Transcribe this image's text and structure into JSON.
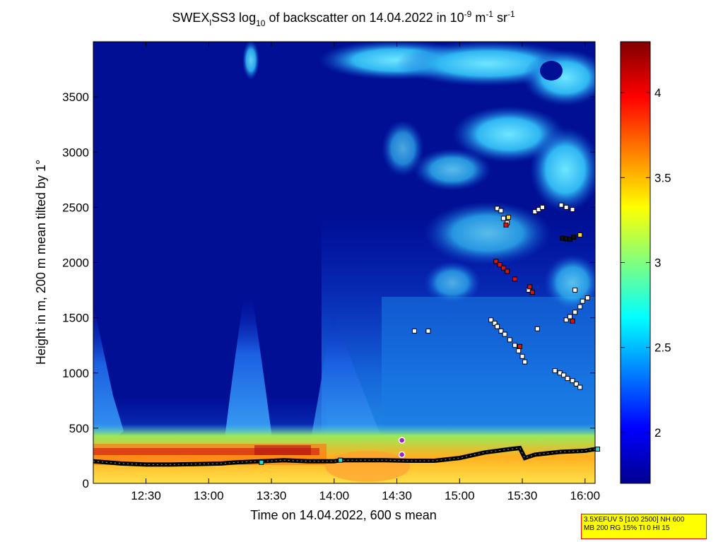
{
  "chart_data": {
    "type": "heatmap",
    "title_parts": {
      "a": "SWEX",
      "sub1": "l",
      "b": "SS3 log",
      "sub2": "10",
      "c": " of backscatter on 14.04.2022 in 10",
      "sup1": "-9",
      "d": " m",
      "sup2": "-1",
      "e": " sr",
      "sup3": "-1"
    },
    "xlabel": "Time on 14.04.2022, 600 s mean",
    "ylabel": "Height in m, 200 m mean tilted by 1°",
    "x_ticks": [
      "12:30",
      "13:00",
      "13:30",
      "14:00",
      "14:30",
      "15:00",
      "15:30",
      "16:00"
    ],
    "x_tick_hours": [
      12.5,
      13.0,
      13.5,
      14.0,
      14.5,
      15.0,
      15.5,
      16.0
    ],
    "xlim_hours": [
      12.08,
      16.08
    ],
    "y_ticks": [
      "0",
      "500",
      "1000",
      "1500",
      "2000",
      "2500",
      "3000",
      "3500"
    ],
    "y_tick_values": [
      0,
      500,
      1000,
      1500,
      2000,
      2500,
      3000,
      3500
    ],
    "ylim": [
      0,
      4000
    ],
    "colorbar": {
      "ticks": [
        "2",
        "2.5",
        "3",
        "3.5",
        "4"
      ],
      "tick_values": [
        2,
        2.5,
        3,
        3.5,
        4
      ],
      "range": [
        1.7,
        4.3
      ],
      "colormap": "jet"
    },
    "markers": {
      "white": [
        [
          15.25,
          1480
        ],
        [
          15.28,
          1450
        ],
        [
          15.3,
          1420
        ],
        [
          15.33,
          1380
        ],
        [
          15.36,
          1350
        ],
        [
          15.4,
          1300
        ],
        [
          15.44,
          1250
        ],
        [
          15.47,
          1200
        ],
        [
          15.5,
          1150
        ],
        [
          15.52,
          1100
        ],
        [
          15.3,
          2490
        ],
        [
          15.33,
          2470
        ],
        [
          15.35,
          2400
        ],
        [
          15.38,
          2360
        ],
        [
          15.6,
          2460
        ],
        [
          15.63,
          2480
        ],
        [
          15.66,
          2500
        ],
        [
          15.81,
          2520
        ],
        [
          15.85,
          2500
        ],
        [
          15.9,
          2480
        ],
        [
          15.55,
          1750
        ],
        [
          15.92,
          1750
        ],
        [
          15.85,
          1480
        ],
        [
          15.88,
          1510
        ],
        [
          15.92,
          1550
        ],
        [
          15.96,
          1600
        ],
        [
          15.98,
          1650
        ],
        [
          16.02,
          1680
        ],
        [
          15.76,
          1020
        ],
        [
          15.8,
          1000
        ],
        [
          15.83,
          980
        ],
        [
          15.86,
          950
        ],
        [
          15.9,
          930
        ],
        [
          15.93,
          900
        ],
        [
          15.96,
          870
        ],
        [
          15.62,
          1400
        ],
        [
          14.64,
          1380
        ],
        [
          14.75,
          1380
        ]
      ],
      "red": [
        [
          15.29,
          2010
        ],
        [
          15.32,
          1980
        ],
        [
          15.35,
          1950
        ],
        [
          15.38,
          1920
        ],
        [
          15.44,
          1850
        ],
        [
          15.37,
          2340
        ],
        [
          15.9,
          1470
        ],
        [
          15.56,
          1780
        ],
        [
          15.58,
          1730
        ],
        [
          15.48,
          1240
        ]
      ],
      "yellow": [
        [
          15.39,
          2410
        ],
        [
          15.96,
          2250
        ]
      ],
      "black": [
        [
          15.82,
          2220
        ],
        [
          15.85,
          2215
        ],
        [
          15.88,
          2210
        ],
        [
          15.91,
          2230
        ]
      ],
      "cyan": [
        [
          16.1,
          310
        ],
        [
          13.42,
          190
        ],
        [
          14.05,
          210
        ]
      ],
      "purple": [
        [
          14.54,
          390
        ],
        [
          14.54,
          260
        ]
      ]
    },
    "boundary_layer_track": {
      "x": [
        12.08,
        12.3,
        12.5,
        12.7,
        12.9,
        13.1,
        13.22,
        13.42,
        13.6,
        13.8,
        14.0,
        14.05,
        14.4,
        14.6,
        14.8,
        15.0,
        15.2,
        15.4,
        15.48,
        15.52,
        15.6,
        15.8,
        16.0,
        16.08
      ],
      "y": [
        200,
        180,
        170,
        170,
        175,
        180,
        190,
        200,
        210,
        200,
        200,
        210,
        210,
        205,
        205,
        230,
        280,
        310,
        320,
        230,
        260,
        285,
        295,
        310
      ]
    }
  },
  "info_box": {
    "line1": "3.5XEFUV 5 [100 2500] NH 600",
    "line2": "MB 200 RG 15% TI 0 HI 15"
  }
}
